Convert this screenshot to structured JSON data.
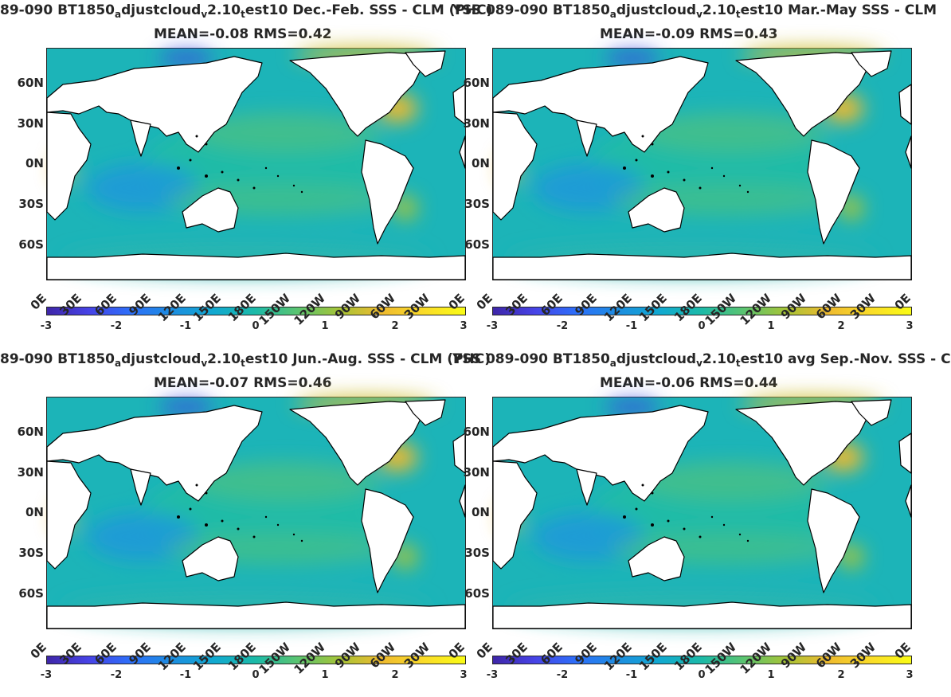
{
  "colormap": [
    "#3e26a8",
    "#4743e6",
    "#2d6ff9",
    "#1d8ee0",
    "#11a9d0",
    "#1cbaa7",
    "#5bc470",
    "#a6c437",
    "#eeba2f",
    "#fadb29",
    "#f9fb15"
  ],
  "land_color": "#ffffff",
  "coast_color": "#000000",
  "lat_labels": [
    "60N",
    "30N",
    "0N",
    "30S",
    "60S"
  ],
  "lon_labels": [
    "0E",
    "30E",
    "60E",
    "90E",
    "120E",
    "150E",
    "180E",
    "150W",
    "120W",
    "90W",
    "60W",
    "30W",
    "0E"
  ],
  "colorbar_ticks": [
    "-3",
    "-2",
    "-1",
    "0",
    "1",
    "2",
    "3"
  ],
  "panels": [
    {
      "title_parts": [
        "89-090 BT1850",
        "a",
        "djustcloud",
        "v",
        "2.10",
        "t",
        "est10  Dec.-Feb. SSS - CLM (PHC)"
      ],
      "overlap_text": "YSS 089-090 BT1",
      "stats": "MEAN=-0.08   RMS=0.42"
    },
    {
      "title_parts": [
        "",
        "",
        "",
        "",
        "",
        "",
        ""
      ],
      "overlap_text": "",
      "title_right": [
        "850",
        "a",
        "djustcloud",
        "v",
        "2.10",
        "t",
        "est10 Mar.-May SSS - CLM"
      ],
      "stats": "MEAN=-0.09   RMS=0.43"
    },
    {
      "title_parts": [
        "89-090 BT1850",
        "a",
        "djustcloud",
        "v",
        "2.10",
        "t",
        "est10 Jun.-Aug. SSS - CLM (PHC)"
      ],
      "overlap_text": "YSS 089-090 BT1",
      "stats": "MEAN=-0.07   RMS=0.46"
    },
    {
      "title_parts": [
        "",
        "",
        "",
        "",
        "",
        "",
        ""
      ],
      "overlap_text": "",
      "title_right": [
        "850",
        "a",
        "djustcloud",
        "v",
        "2.10",
        "t",
        "est10 avg Sep.-Nov. SSS - C"
      ],
      "stats": "MEAN=-0.06   RMS=0.44"
    }
  ]
}
